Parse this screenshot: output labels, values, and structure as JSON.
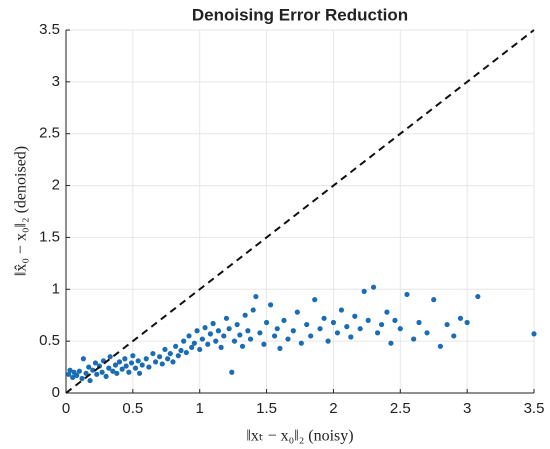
{
  "chart_data": {
    "type": "scatter",
    "title": "Denoising Error Reduction",
    "xlabel": "‖xₜ − x₀‖₂ (noisy)",
    "ylabel": "‖x̂₀ − x₀‖₂ (denoised)",
    "xlim": [
      0,
      3.5
    ],
    "ylim": [
      0,
      3.5
    ],
    "xticks": [
      0,
      0.5,
      1,
      1.5,
      2,
      2.5,
      3,
      3.5
    ],
    "yticks": [
      0,
      0.5,
      1,
      1.5,
      2,
      2.5,
      3,
      3.5
    ],
    "grid": true,
    "identity_line": true,
    "color": "#1a6cb5",
    "x": [
      0.02,
      0.03,
      0.05,
      0.06,
      0.08,
      0.1,
      0.12,
      0.13,
      0.15,
      0.17,
      0.18,
      0.2,
      0.22,
      0.23,
      0.25,
      0.27,
      0.28,
      0.3,
      0.32,
      0.33,
      0.35,
      0.37,
      0.38,
      0.4,
      0.42,
      0.44,
      0.45,
      0.47,
      0.49,
      0.5,
      0.52,
      0.54,
      0.55,
      0.57,
      0.6,
      0.62,
      0.65,
      0.67,
      0.7,
      0.72,
      0.74,
      0.76,
      0.78,
      0.8,
      0.82,
      0.84,
      0.86,
      0.88,
      0.9,
      0.92,
      0.94,
      0.96,
      0.98,
      1.0,
      1.02,
      1.04,
      1.06,
      1.08,
      1.1,
      1.12,
      1.14,
      1.16,
      1.18,
      1.2,
      1.22,
      1.24,
      1.26,
      1.28,
      1.3,
      1.32,
      1.34,
      1.36,
      1.38,
      1.4,
      1.42,
      1.45,
      1.48,
      1.5,
      1.53,
      1.56,
      1.58,
      1.6,
      1.63,
      1.66,
      1.7,
      1.73,
      1.76,
      1.8,
      1.83,
      1.86,
      1.9,
      1.93,
      1.96,
      2.0,
      2.03,
      2.06,
      2.1,
      2.13,
      2.16,
      2.2,
      2.23,
      2.26,
      2.3,
      2.33,
      2.36,
      2.4,
      2.43,
      2.46,
      2.5,
      2.55,
      2.6,
      2.64,
      2.7,
      2.75,
      2.8,
      2.85,
      2.9,
      2.95,
      3.0,
      3.08,
      3.5
    ],
    "y": [
      0.18,
      0.22,
      0.15,
      0.2,
      0.17,
      0.21,
      0.14,
      0.33,
      0.19,
      0.25,
      0.12,
      0.22,
      0.29,
      0.18,
      0.26,
      0.2,
      0.31,
      0.16,
      0.24,
      0.35,
      0.21,
      0.27,
      0.19,
      0.3,
      0.23,
      0.33,
      0.26,
      0.2,
      0.29,
      0.36,
      0.24,
      0.31,
      0.19,
      0.27,
      0.33,
      0.25,
      0.38,
      0.3,
      0.35,
      0.28,
      0.42,
      0.33,
      0.38,
      0.3,
      0.45,
      0.36,
      0.41,
      0.5,
      0.39,
      0.55,
      0.44,
      0.48,
      0.6,
      0.42,
      0.52,
      0.63,
      0.47,
      0.57,
      0.67,
      0.5,
      0.6,
      0.44,
      0.55,
      0.72,
      0.62,
      0.2,
      0.5,
      0.66,
      0.56,
      0.45,
      0.75,
      0.6,
      0.52,
      0.8,
      0.93,
      0.58,
      0.47,
      0.68,
      0.85,
      0.55,
      0.62,
      0.43,
      0.7,
      0.52,
      0.6,
      0.78,
      0.48,
      0.66,
      0.55,
      0.9,
      0.62,
      0.72,
      0.5,
      0.68,
      0.58,
      0.8,
      0.64,
      0.54,
      0.74,
      0.62,
      0.98,
      0.7,
      1.02,
      0.58,
      0.66,
      0.78,
      0.48,
      0.7,
      0.62,
      0.95,
      0.52,
      0.68,
      0.58,
      0.9,
      0.45,
      0.66,
      0.55,
      0.72,
      0.68,
      0.93,
      0.57
    ]
  }
}
